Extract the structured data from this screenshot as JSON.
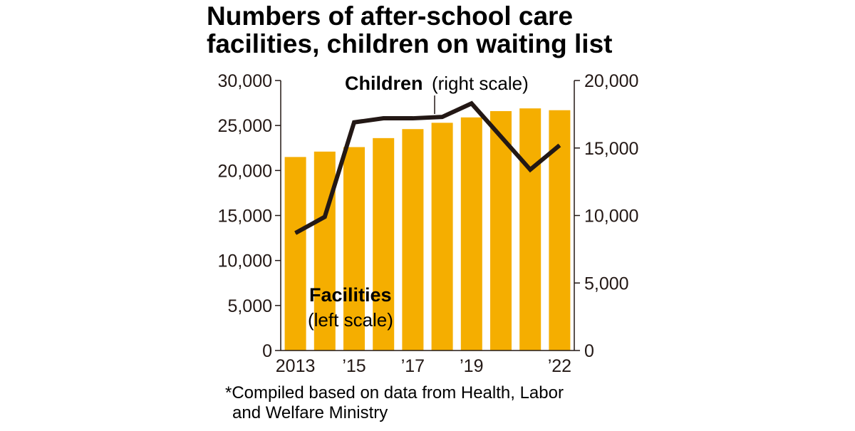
{
  "title_line1": "Numbers of after-school care",
  "title_line2": "facilities, children on waiting list",
  "colors": {
    "bar": "#f5ae00",
    "line": "#231815",
    "text": "#231815",
    "bg": "#ffffff"
  },
  "chart_data": {
    "type": "bar",
    "categories": [
      "2013",
      "2014",
      "2015",
      "2016",
      "2017",
      "2018",
      "2019",
      "2020",
      "2021",
      "2022"
    ],
    "x_tick_labels": [
      "2013",
      "",
      "’15",
      "",
      "’17",
      "",
      "’19",
      "",
      "",
      "’22"
    ],
    "series": [
      {
        "name": "Facilities",
        "type": "bar",
        "axis": "left",
        "values": [
          21500,
          22100,
          22600,
          23600,
          24600,
          25300,
          25900,
          26600,
          26900,
          26700
        ]
      },
      {
        "name": "Children",
        "type": "line",
        "axis": "right",
        "values": [
          8700,
          9900,
          16900,
          17200,
          17200,
          17300,
          18300,
          null,
          13400,
          15200
        ]
      }
    ],
    "left_axis": {
      "ylim": [
        0,
        30000
      ],
      "ticks": [
        "0",
        "5,000",
        "10,000",
        "15,000",
        "20,000",
        "25,000",
        "30,000"
      ]
    },
    "right_axis": {
      "ylim": [
        0,
        20000
      ],
      "ticks": [
        "0",
        "5,000",
        "10,000",
        "15,000",
        "20,000"
      ]
    },
    "annotations": {
      "children_bold": "Children",
      "children_rest": "(right scale)",
      "facilities_bold": "Facilities",
      "facilities_rest": "(left scale)"
    },
    "grid": false
  },
  "note_line1": "*Compiled based on data from Health, Labor",
  "note_line2": "and Welfare Ministry"
}
